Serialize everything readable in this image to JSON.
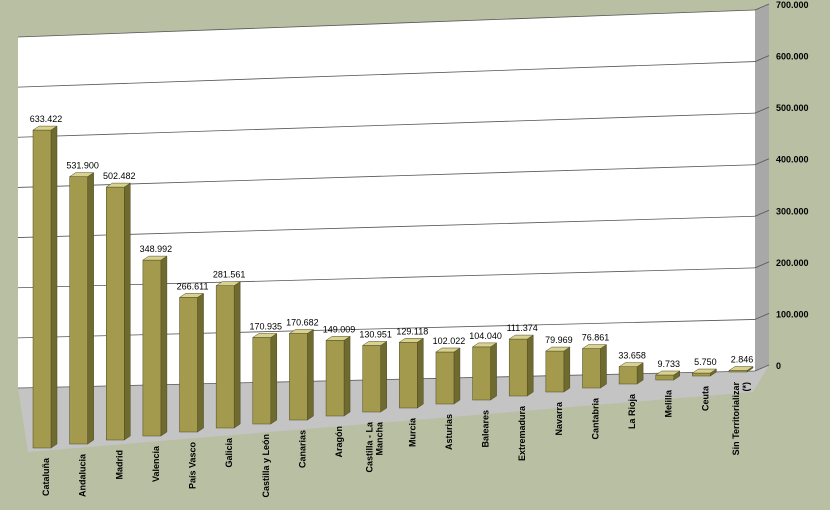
{
  "chart_data": {
    "type": "bar",
    "title": "",
    "xlabel": "",
    "ylabel": "",
    "ylim": [
      0,
      700000
    ],
    "grid": true,
    "legend": "none",
    "yticks": [
      {
        "value": 0,
        "label": "0"
      },
      {
        "value": 100000,
        "label": "100.000"
      },
      {
        "value": 200000,
        "label": "200.000"
      },
      {
        "value": 300000,
        "label": "300.000"
      },
      {
        "value": 400000,
        "label": "400.000"
      },
      {
        "value": 500000,
        "label": "500.000"
      },
      {
        "value": 600000,
        "label": "600.000"
      },
      {
        "value": 700000,
        "label": "700.000"
      }
    ],
    "categories": [
      "Cataluña",
      "Andalucia",
      "Madrid",
      "Valencia",
      "País Vasco",
      "Galicia",
      "Castilla y León",
      "Canarias",
      "Aragón",
      "Castilla - La Mancha",
      "Murcia",
      "Asturias",
      "Baleares",
      "Extremadura",
      "Navarra",
      "Cantabria",
      "La Rioja",
      "Melilla",
      "Ceuta",
      "Sin Territorializar (*)"
    ],
    "values": [
      633422,
      531900,
      502482,
      348992,
      266611,
      281561,
      170935,
      170682,
      149009,
      130951,
      129118,
      102022,
      104040,
      111374,
      79969,
      76861,
      33658,
      9733,
      5750,
      2846
    ],
    "value_labels": [
      "633.422",
      "531.900",
      "502.482",
      "348.992",
      "266.611",
      "281.561",
      "170.935",
      "170.682",
      "149.009",
      "130.951",
      "129.118",
      "102.022",
      "104.040",
      "111.374",
      "79.969",
      "76.861",
      "33.658",
      "9.733",
      "5.750",
      "2.846"
    ],
    "colors": {
      "background": "#b9bfa3",
      "plot_back": "#ffffff",
      "floor": "#c4c4c4",
      "side_wall": "#a8a8a8",
      "gridline": "#555555",
      "bar_front": "#a39a4e",
      "bar_side": "#6f6a30",
      "bar_top": "#d8d190"
    }
  }
}
